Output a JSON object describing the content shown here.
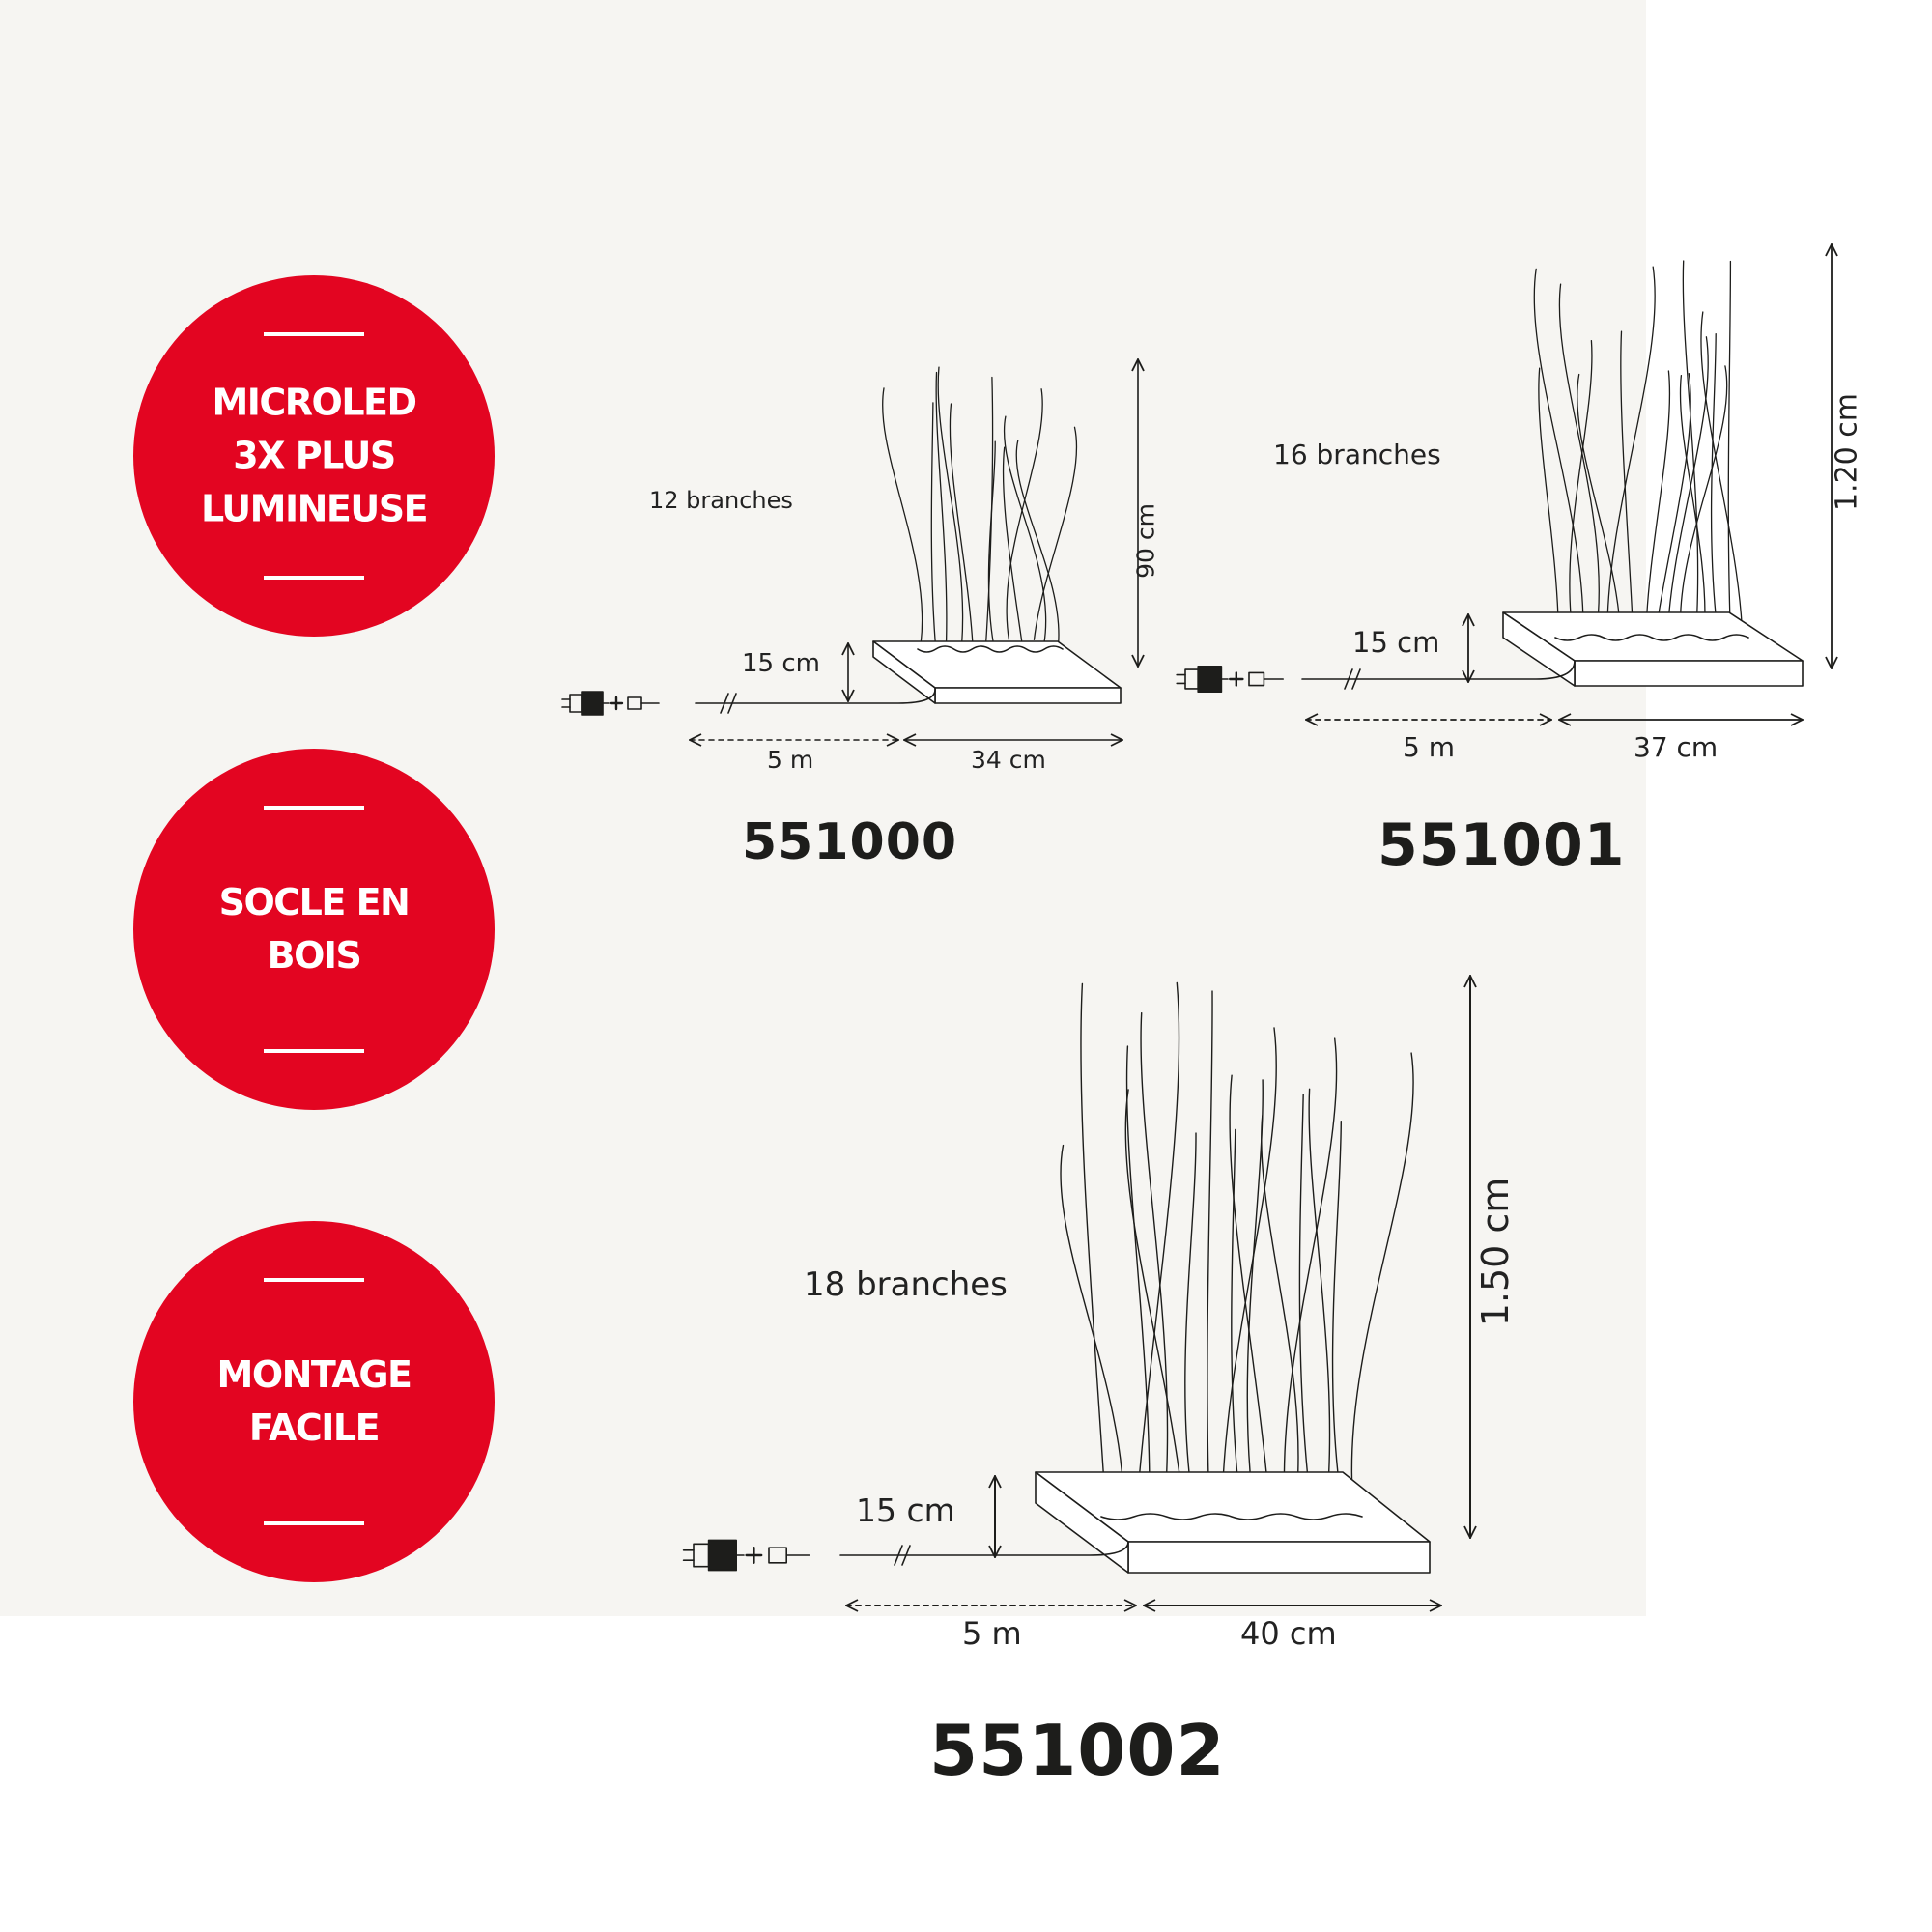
{
  "badges": [
    {
      "lines": [
        "MICROLED",
        "3X PLUS",
        "LUMINEUSE"
      ]
    },
    {
      "lines": [
        "SOCLE EN",
        "BOIS"
      ]
    },
    {
      "lines": [
        "MONTAGE",
        "FACILE"
      ]
    }
  ],
  "products": [
    {
      "code": "551000",
      "branches": "12 branches",
      "height": "90 cm",
      "base_height": "15 cm",
      "cable": "5 m",
      "width": "34 cm"
    },
    {
      "code": "551001",
      "branches": "16 branches",
      "height": "1.20 cm",
      "base_height": "15 cm",
      "cable": "5 m",
      "width": "37 cm"
    },
    {
      "code": "551002",
      "branches": "18 branches",
      "height": "1.50 cm",
      "base_height": "15 cm",
      "cable": "5 m",
      "width": "40 cm"
    }
  ],
  "colors": {
    "badge": "#e30521",
    "panel": "#f6f5f2",
    "line": "#1d1d1b"
  },
  "icons": [
    "power-plug-icon",
    "connector-icon",
    "dimension-arrow-icon",
    "dashed-dimension-arrow-icon",
    "cable-break-icon",
    "reed-branches-icon",
    "wooden-base-icon"
  ]
}
